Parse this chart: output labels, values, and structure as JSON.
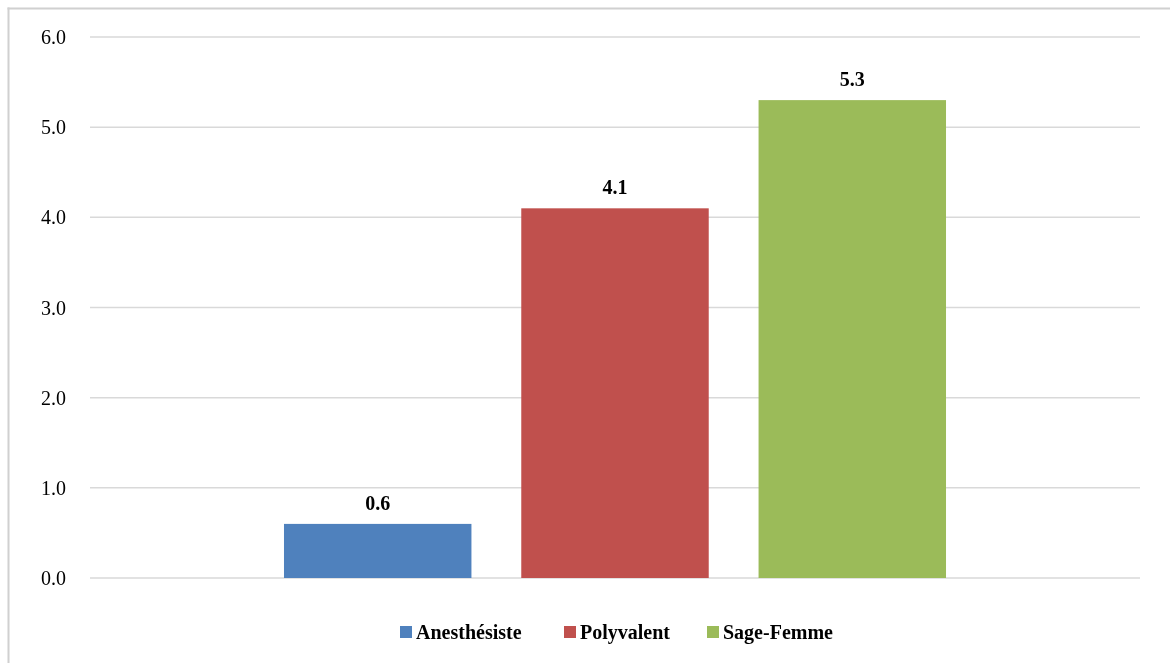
{
  "chart_data": {
    "type": "bar",
    "categories": [
      null
    ],
    "series": [
      {
        "name": "Anesthésiste",
        "color": "#4f81bd",
        "values": [
          0.6
        ]
      },
      {
        "name": "Polyvalent",
        "color": "#c0504d",
        "values": [
          4.1
        ]
      },
      {
        "name": "Sage-Femme",
        "color": "#9bbb59",
        "values": [
          5.3
        ]
      }
    ],
    "ylim": [
      0,
      6
    ],
    "yticks": [
      {
        "value": 0,
        "label": "0.0"
      },
      {
        "value": 1,
        "label": "1.0"
      },
      {
        "value": 2,
        "label": "2.0"
      },
      {
        "value": 3,
        "label": "3.0"
      },
      {
        "value": 4,
        "label": "4.0"
      },
      {
        "value": 5,
        "label": "5.0"
      },
      {
        "value": 6,
        "label": "6.0"
      }
    ],
    "grid": "y",
    "legend": "bottom",
    "data_labels": true
  }
}
